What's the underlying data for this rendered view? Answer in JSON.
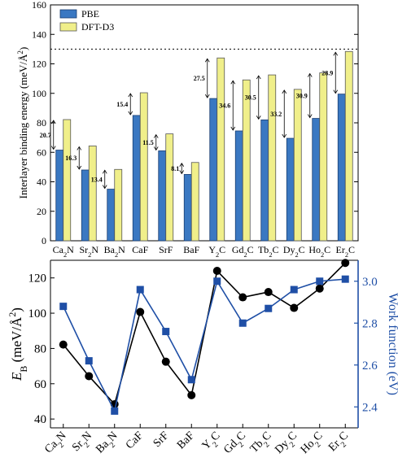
{
  "chart_data": [
    {
      "type": "bar",
      "categories": [
        "Ca<sub>2</sub>N",
        "Sr<sub>2</sub>N",
        "Ba<sub>2</sub>N",
        "CaF",
        "SrF",
        "BaF",
        "Y<sub>2</sub>C",
        "Gd<sub>2</sub>C",
        "Tb<sub>2</sub>C",
        "Dy<sub>2</sub>C",
        "Ho<sub>2</sub>C",
        "Er<sub>2</sub>C"
      ],
      "series": [
        {
          "name": "PBE",
          "values": [
            61.5,
            48.0,
            35.0,
            85.0,
            61.0,
            45.0,
            96.5,
            74.5,
            82.0,
            69.5,
            83.0,
            99.5
          ],
          "color": "#3a78c2"
        },
        {
          "name": "DFT-D3",
          "values": [
            82.2,
            64.3,
            48.4,
            100.4,
            72.5,
            53.1,
            124.0,
            109.1,
            112.5,
            102.7,
            113.9,
            128.4
          ],
          "color": "#f0ef8a"
        }
      ],
      "difference_labels": [
        "20.7",
        "16.3",
        "13.4",
        "15.4",
        "11.5",
        "8.1",
        "27.5",
        "34.6",
        "30.5",
        "33.2",
        "30.9",
        "28.9"
      ],
      "reference_line": 130,
      "ylabel": "Interlayer binding energy (meV/Å<sup>2</sup>)",
      "ylim": [
        0,
        160
      ],
      "yticks": [
        0,
        20,
        40,
        60,
        80,
        100,
        120,
        140,
        160
      ],
      "legend_position": "top-left"
    },
    {
      "type": "line",
      "categories": [
        "Ca<sub>2</sub>N",
        "Sr<sub>2</sub>N",
        "Ba<sub>2</sub>N",
        "CaF",
        "SrF",
        "BaF",
        "Y<sub>2</sub>C",
        "Gd<sub>2</sub>C",
        "Tb<sub>2</sub>C",
        "Dy<sub>2</sub>C",
        "Ho<sub>2</sub>C",
        "Er<sub>2</sub>C"
      ],
      "series": [
        {
          "name": "E_B",
          "axis": "left",
          "values": [
            82.2,
            64.3,
            48.4,
            100.7,
            72.5,
            53.5,
            124.0,
            109.0,
            112.0,
            103.0,
            114.0,
            128.5
          ],
          "color": "#000000",
          "marker": "circle"
        },
        {
          "name": "Work function",
          "axis": "right",
          "values": [
            2.88,
            2.62,
            2.38,
            2.96,
            2.76,
            2.53,
            3.0,
            2.8,
            2.87,
            2.96,
            3.0,
            3.01
          ],
          "color": "#1f4fa6",
          "marker": "square"
        }
      ],
      "ylabel_left": "<i>E</i><sub>B</sub> (meV/Å<sup>2</sup>)",
      "ylabel_right": "Work function (eV)",
      "ylim_left": [
        35,
        130
      ],
      "ylim_right": [
        2.3,
        3.1
      ],
      "yticks_left": [
        40,
        60,
        80,
        100,
        120
      ],
      "yticks_right": [
        "2.4",
        "2.6",
        "2.8",
        "3.0"
      ],
      "right_axis_color": "#1f4fa6"
    }
  ]
}
